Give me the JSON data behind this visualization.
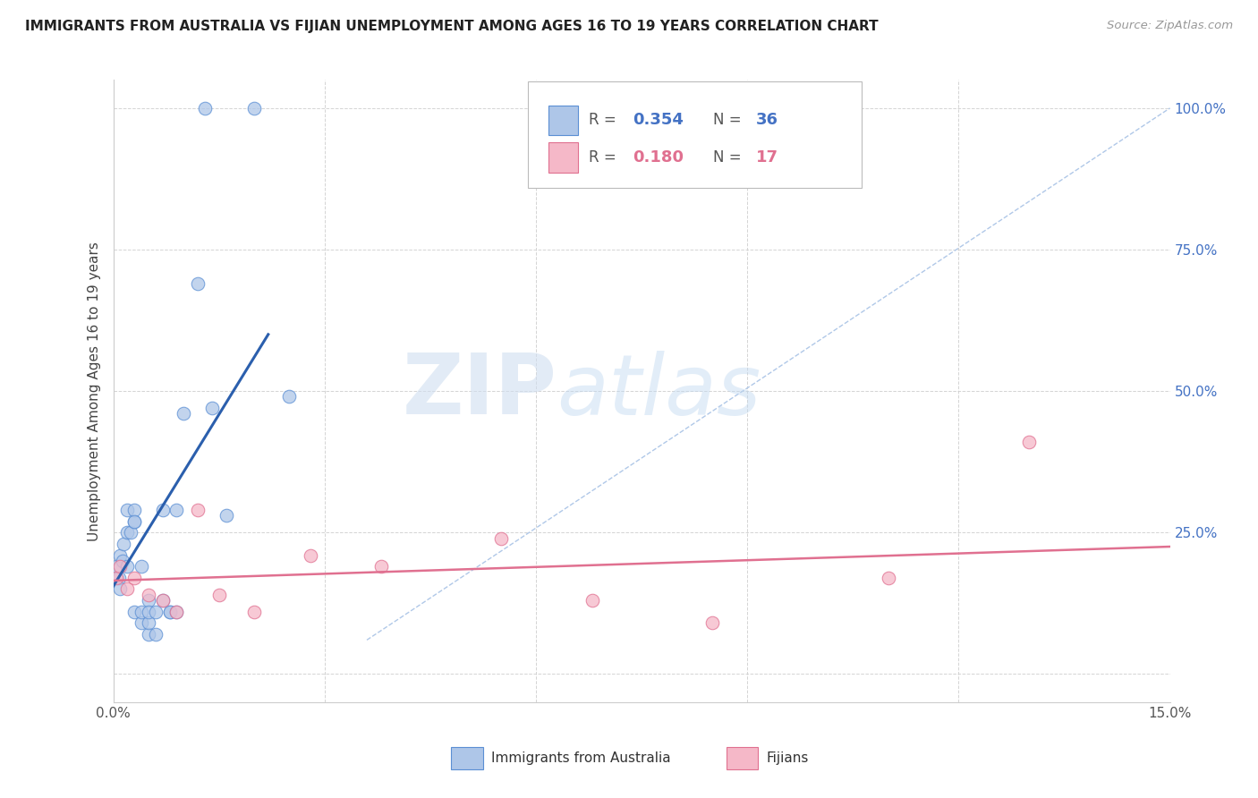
{
  "title": "IMMIGRANTS FROM AUSTRALIA VS FIJIAN UNEMPLOYMENT AMONG AGES 16 TO 19 YEARS CORRELATION CHART",
  "source": "Source: ZipAtlas.com",
  "ylabel_left": "Unemployment Among Ages 16 to 19 years",
  "xlim": [
    0.0,
    0.15
  ],
  "ylim": [
    -0.05,
    1.05
  ],
  "blue_R": 0.354,
  "blue_N": 36,
  "pink_R": 0.18,
  "pink_N": 17,
  "blue_color": "#aec6e8",
  "blue_edge_color": "#5b8fd4",
  "blue_line_color": "#2b5fad",
  "pink_color": "#f5b8c8",
  "pink_edge_color": "#e07090",
  "pink_line_color": "#e07090",
  "legend_label_blue": "Immigrants from Australia",
  "legend_label_pink": "Fijians",
  "watermark_zip": "ZIP",
  "watermark_atlas": "atlas",
  "blue_scatter_x": [
    0.0005,
    0.0008,
    0.001,
    0.001,
    0.0013,
    0.0015,
    0.002,
    0.002,
    0.002,
    0.0025,
    0.003,
    0.003,
    0.003,
    0.003,
    0.004,
    0.004,
    0.004,
    0.005,
    0.005,
    0.005,
    0.005,
    0.006,
    0.006,
    0.007,
    0.007,
    0.008,
    0.008,
    0.009,
    0.009,
    0.01,
    0.012,
    0.014,
    0.016,
    0.02,
    0.013,
    0.025
  ],
  "blue_scatter_y": [
    0.19,
    0.17,
    0.21,
    0.15,
    0.2,
    0.23,
    0.25,
    0.29,
    0.19,
    0.25,
    0.27,
    0.29,
    0.11,
    0.27,
    0.19,
    0.09,
    0.11,
    0.07,
    0.13,
    0.09,
    0.11,
    0.07,
    0.11,
    0.29,
    0.13,
    0.11,
    0.11,
    0.11,
    0.29,
    0.46,
    0.69,
    0.47,
    0.28,
    1.0,
    1.0,
    0.49
  ],
  "pink_scatter_x": [
    0.0005,
    0.001,
    0.002,
    0.003,
    0.005,
    0.007,
    0.009,
    0.012,
    0.015,
    0.02,
    0.028,
    0.038,
    0.055,
    0.068,
    0.085,
    0.11,
    0.13
  ],
  "pink_scatter_y": [
    0.17,
    0.19,
    0.15,
    0.17,
    0.14,
    0.13,
    0.11,
    0.29,
    0.14,
    0.11,
    0.21,
    0.19,
    0.24,
    0.13,
    0.09,
    0.17,
    0.41
  ],
  "blue_line_x": [
    0.0,
    0.022
  ],
  "blue_line_y": [
    0.155,
    0.6
  ],
  "pink_line_x": [
    0.0,
    0.15
  ],
  "pink_line_y": [
    0.165,
    0.225
  ],
  "ref_line_x": [
    0.036,
    0.15
  ],
  "ref_line_y": [
    0.06,
    1.0
  ]
}
